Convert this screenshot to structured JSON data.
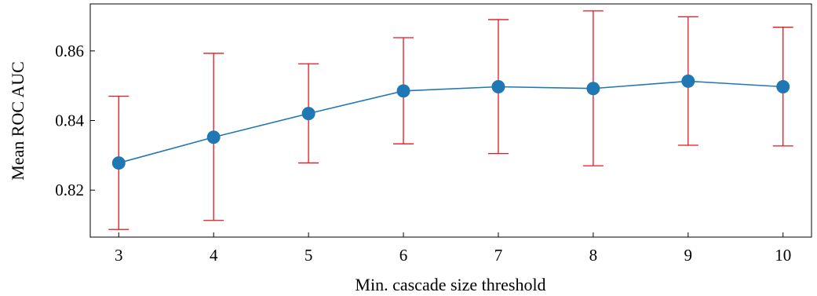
{
  "chart_data": {
    "type": "line",
    "title": "",
    "xlabel": "Min. cascade size threshold",
    "ylabel": "Mean ROC AUC",
    "x": [
      3,
      4,
      5,
      6,
      7,
      8,
      9,
      10
    ],
    "xticks": [
      "3",
      "4",
      "5",
      "6",
      "7",
      "8",
      "9",
      "10"
    ],
    "xlim": [
      2.7,
      10.3
    ],
    "ylim": [
      0.8065,
      0.8735
    ],
    "yticks": [
      0.82,
      0.84,
      0.86
    ],
    "ytick_labels": [
      "0.82",
      "0.84",
      "0.86"
    ],
    "grid": false,
    "series": [
      {
        "values": [
          0.8278,
          0.8352,
          0.842,
          0.8485,
          0.8497,
          0.8492,
          0.8513,
          0.8497
        ],
        "error_low": [
          0.8087,
          0.8113,
          0.8278,
          0.8333,
          0.8305,
          0.827,
          0.8329,
          0.8327
        ],
        "error_high": [
          0.847,
          0.8593,
          0.8563,
          0.8638,
          0.869,
          0.8715,
          0.8698,
          0.8668
        ],
        "color": "#1f77b4",
        "error_color": "#e8141c"
      }
    ]
  }
}
